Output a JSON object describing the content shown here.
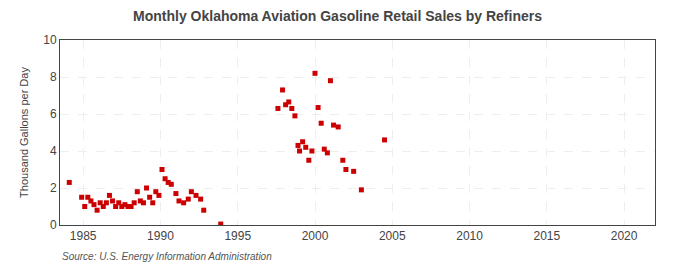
{
  "chart_data": {
    "type": "scatter",
    "title": "Monthly Oklahoma Aviation Gasoline Retail Sales by Refiners",
    "y_label": "Thousand Gallons per Day",
    "annotations": [
      "Source: U.S. Energy Information Administration"
    ],
    "x": [
      1984.1,
      1984.9,
      1985.1,
      1985.3,
      1985.5,
      1985.7,
      1985.9,
      1986.1,
      1986.3,
      1986.5,
      1986.7,
      1986.9,
      1987.1,
      1987.3,
      1987.5,
      1987.7,
      1987.9,
      1988.1,
      1988.3,
      1988.5,
      1988.7,
      1988.9,
      1989.1,
      1989.3,
      1989.5,
      1989.7,
      1989.9,
      1990.1,
      1990.3,
      1990.5,
      1990.7,
      1991.0,
      1991.2,
      1991.5,
      1991.8,
      1992.0,
      1992.3,
      1992.6,
      1992.8,
      1993.9,
      1997.6,
      1997.9,
      1998.1,
      1998.3,
      1998.5,
      1998.7,
      1998.9,
      1999.0,
      1999.2,
      1999.4,
      1999.6,
      1999.8,
      2000.0,
      2000.2,
      2000.4,
      2000.6,
      2000.8,
      2001.0,
      2001.2,
      2001.5,
      2001.8,
      2002.0,
      2002.5,
      2003.0,
      2004.5
    ],
    "values": [
      2.3,
      1.5,
      1.0,
      1.5,
      1.3,
      1.1,
      0.8,
      1.2,
      1.0,
      1.2,
      1.6,
      1.3,
      1.0,
      1.2,
      1.0,
      1.1,
      1.0,
      1.0,
      1.2,
      1.8,
      1.3,
      1.2,
      2.0,
      1.5,
      1.2,
      1.8,
      1.6,
      3.0,
      2.5,
      2.3,
      2.2,
      1.7,
      1.3,
      1.2,
      1.4,
      1.8,
      1.6,
      1.4,
      0.8,
      0.05,
      6.3,
      7.3,
      6.5,
      6.65,
      6.3,
      5.9,
      4.3,
      4.0,
      4.5,
      4.2,
      3.5,
      4.0,
      8.2,
      6.35,
      5.5,
      4.1,
      3.9,
      7.8,
      5.4,
      5.3,
      3.5,
      3.0,
      2.9,
      1.9,
      4.6
    ],
    "color": "#cc0000",
    "marker": "square",
    "xlim": [
      1983.5,
      2022
    ],
    "ylim": [
      0,
      10
    ],
    "xticks": [
      1985,
      1990,
      1995,
      2000,
      2005,
      2010,
      2015,
      2020
    ],
    "yticks": [
      0,
      2,
      4,
      6,
      8,
      10
    ],
    "grid": true
  }
}
